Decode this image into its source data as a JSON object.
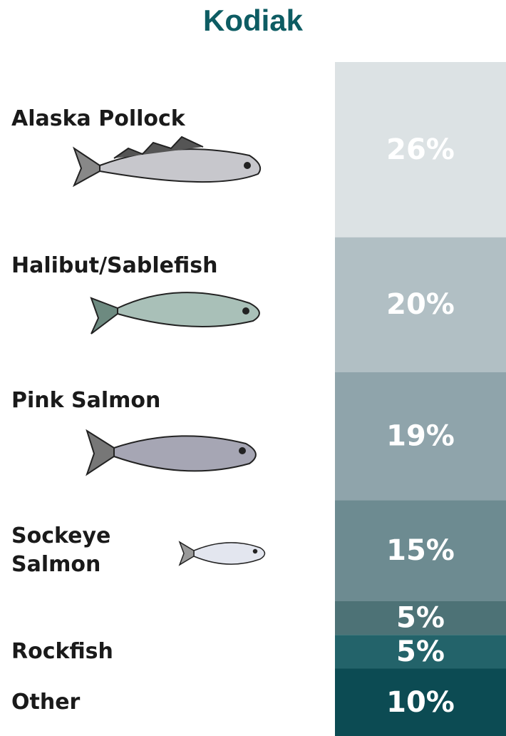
{
  "chart_data": {
    "type": "stacked-column",
    "title": "Kodiak",
    "categories": [
      "Alaska Pollock",
      "Halibut/Sablefish",
      "Pink Salmon",
      "Sockeye Salmon",
      null,
      "Rockfish",
      "Other"
    ],
    "values": [
      26,
      20,
      19,
      15,
      5,
      5,
      10
    ],
    "value_labels": [
      "26%",
      "20%",
      "19%",
      "15%",
      "5%",
      "5%",
      "10%"
    ],
    "colors": [
      "#dce2e4",
      "#b1bfc4",
      "#8fa4ab",
      "#6d8b91",
      "#4d7276",
      "#23636a",
      "#0c4b53"
    ]
  }
}
